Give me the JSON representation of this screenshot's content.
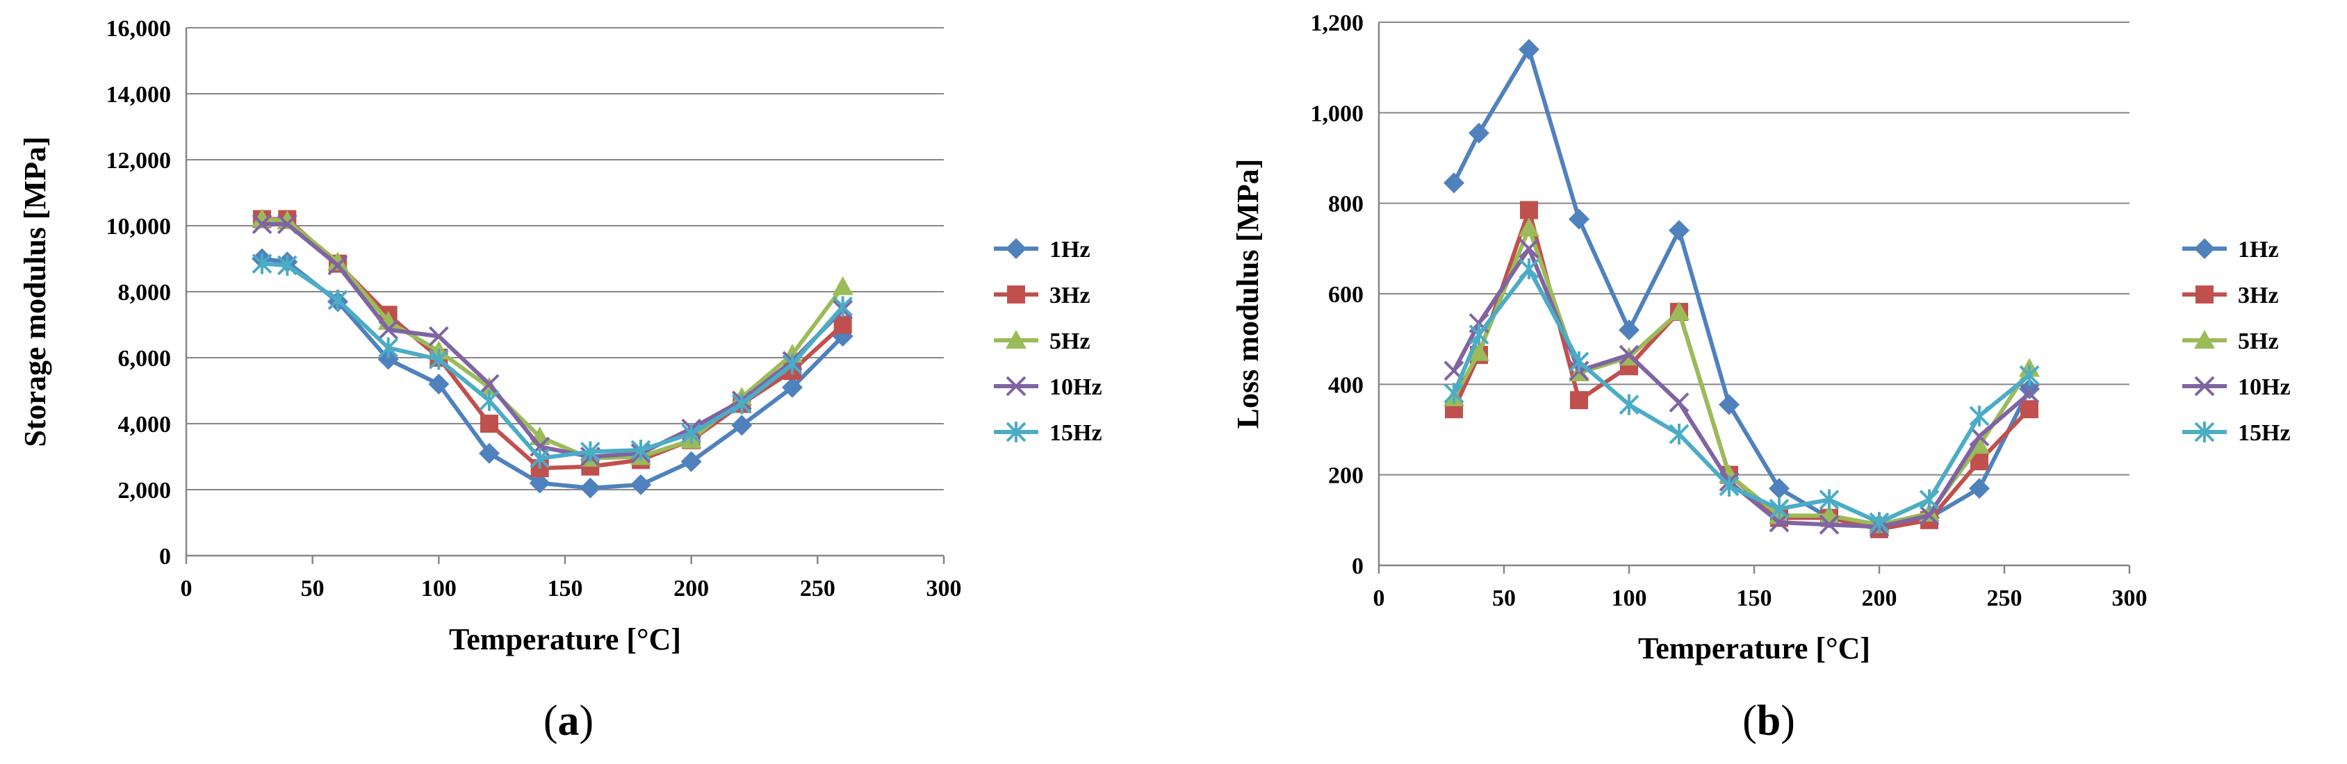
{
  "colors": {
    "1Hz": "#4F81BD",
    "3Hz": "#C0504D",
    "5Hz": "#9BBB59",
    "10Hz": "#8064A2",
    "15Hz": "#4BACC6",
    "grid": "#868686",
    "axis": "#868686"
  },
  "chart_data": [
    {
      "type": "line",
      "panel_label": "a",
      "caption_open": "(",
      "caption_close": ")",
      "xlabel": "Temperature [°C]",
      "ylabel": "Storage modulus [MPa]",
      "xlim": [
        0,
        300
      ],
      "ylim": [
        0,
        16000
      ],
      "xticks": [
        0,
        50,
        100,
        150,
        200,
        250,
        300
      ],
      "yticks": [
        0,
        2000,
        4000,
        6000,
        8000,
        10000,
        12000,
        14000,
        16000
      ],
      "xtick_labels": [
        "0",
        "50",
        "100",
        "150",
        "200",
        "250",
        "300"
      ],
      "ytick_labels": [
        "0",
        "2,000",
        "4,000",
        "6,000",
        "8,000",
        "10,000",
        "12,000",
        "14,000",
        "16,000"
      ],
      "grid": "horizontal",
      "legend_position": "right",
      "x": [
        30,
        40,
        60,
        80,
        100,
        120,
        140,
        160,
        180,
        200,
        220,
        240,
        260
      ],
      "series": [
        {
          "name": "1Hz",
          "marker": "diamond",
          "values": [
            9000,
            8900,
            7700,
            5950,
            5200,
            3100,
            2200,
            2050,
            2150,
            2850,
            3950,
            5100,
            6650
          ]
        },
        {
          "name": "3Hz",
          "marker": "square",
          "values": [
            10200,
            10200,
            8850,
            7300,
            6000,
            4000,
            2650,
            2700,
            2900,
            3500,
            4600,
            5600,
            7000
          ]
        },
        {
          "name": "5Hz",
          "marker": "triangle",
          "values": [
            10200,
            10150,
            8900,
            7100,
            6200,
            5100,
            3600,
            2950,
            3000,
            3500,
            4800,
            6100,
            8150
          ]
        },
        {
          "name": "10Hz",
          "marker": "x",
          "values": [
            10050,
            10050,
            8800,
            6850,
            6650,
            5200,
            3300,
            3000,
            3100,
            3850,
            4700,
            5900,
            7450
          ]
        },
        {
          "name": "15Hz",
          "marker": "asterisk",
          "values": [
            8850,
            8800,
            7750,
            6300,
            5950,
            4700,
            2950,
            3150,
            3200,
            3700,
            4600,
            5800,
            7550
          ]
        }
      ]
    },
    {
      "type": "line",
      "panel_label": "b",
      "caption_open": "(",
      "caption_close": ")",
      "xlabel": "Temperature [°C]",
      "ylabel": "Loss modulus [MPa]",
      "xlim": [
        0,
        300
      ],
      "ylim": [
        0,
        1200
      ],
      "xticks": [
        0,
        50,
        100,
        150,
        200,
        250,
        300
      ],
      "yticks": [
        0,
        200,
        400,
        600,
        800,
        1000,
        1200
      ],
      "xtick_labels": [
        "0",
        "50",
        "100",
        "150",
        "200",
        "250",
        "300"
      ],
      "ytick_labels": [
        "0",
        "200",
        "400",
        "600",
        "800",
        "1,000",
        "1,200"
      ],
      "grid": "horizontal",
      "legend_position": "right",
      "x": [
        30,
        40,
        60,
        80,
        100,
        120,
        140,
        160,
        180,
        200,
        220,
        240,
        260
      ],
      "series": [
        {
          "name": "1Hz",
          "marker": "diamond",
          "values": [
            845,
            955,
            1140,
            765,
            520,
            740,
            355,
            170,
            105,
            90,
            105,
            170,
            390
          ]
        },
        {
          "name": "3Hz",
          "marker": "square",
          "values": [
            345,
            465,
            785,
            365,
            440,
            560,
            200,
            105,
            105,
            80,
            100,
            230,
            345
          ]
        },
        {
          "name": "5Hz",
          "marker": "triangle",
          "values": [
            370,
            470,
            745,
            425,
            460,
            560,
            200,
            110,
            110,
            90,
            115,
            265,
            435
          ]
        },
        {
          "name": "10Hz",
          "marker": "x",
          "values": [
            430,
            535,
            700,
            430,
            465,
            360,
            185,
            95,
            90,
            85,
            110,
            285,
            380
          ]
        },
        {
          "name": "15Hz",
          "marker": "asterisk",
          "values": [
            380,
            510,
            655,
            450,
            355,
            290,
            175,
            125,
            145,
            95,
            145,
            330,
            420
          ]
        }
      ]
    }
  ]
}
